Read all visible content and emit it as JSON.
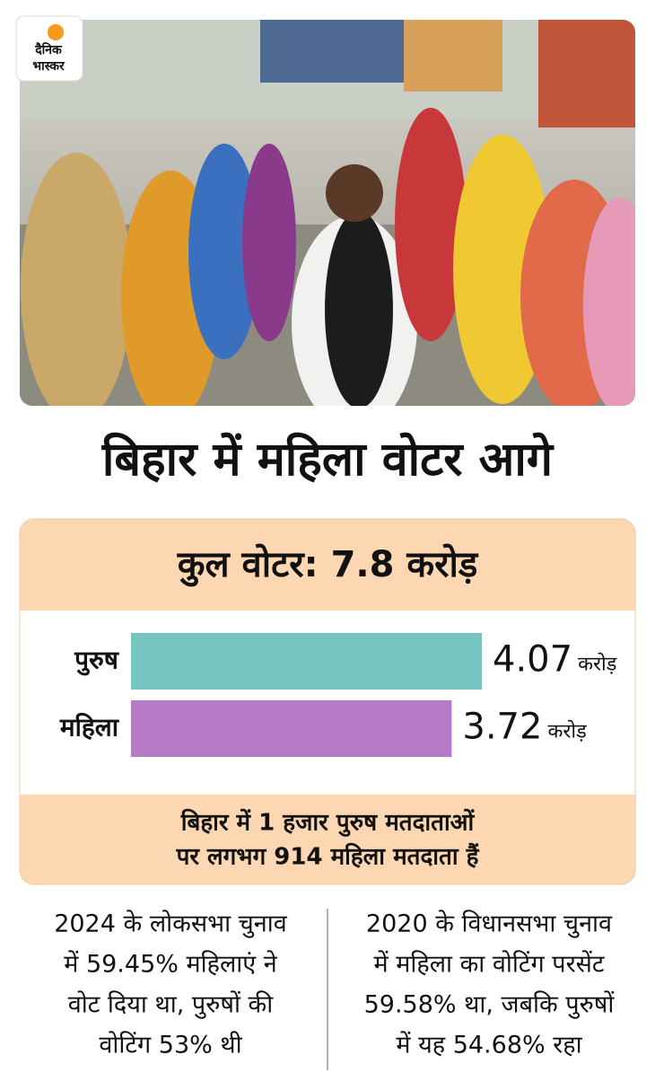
{
  "logo": [
    "दैनिक",
    "भास्कर"
  ],
  "headline": "बिहार में महिला वोटर आगे",
  "chart_data": {
    "type": "bar",
    "orientation": "horizontal",
    "title": "कुल वोटर: 7.8 करोड़",
    "categories": [
      "पुरुष",
      "महिला"
    ],
    "values": [
      4.07,
      3.72
    ],
    "unit": "करोड़",
    "colors": [
      "#76c5c1",
      "#b57ac8"
    ],
    "note": [
      "बिहार में 1 हजार पुरुष मतदाताओं",
      "पर लगभग 914 महिला मतदाता हैं"
    ]
  },
  "facts": [
    {
      "lines": [
        "2024 के लोकसभा चुनाव",
        "में 59.45% महिलाएं ने",
        "वोट दिया था, पुरुषों की",
        "वोटिंग 53% थी"
      ]
    },
    {
      "lines": [
        "2020 के विधानसभा चुनाव",
        "में महिला का वोटिंग परसेंट",
        "59.58% था, जबकि पुरुषों",
        "में यह 54.68% रहा"
      ]
    }
  ]
}
